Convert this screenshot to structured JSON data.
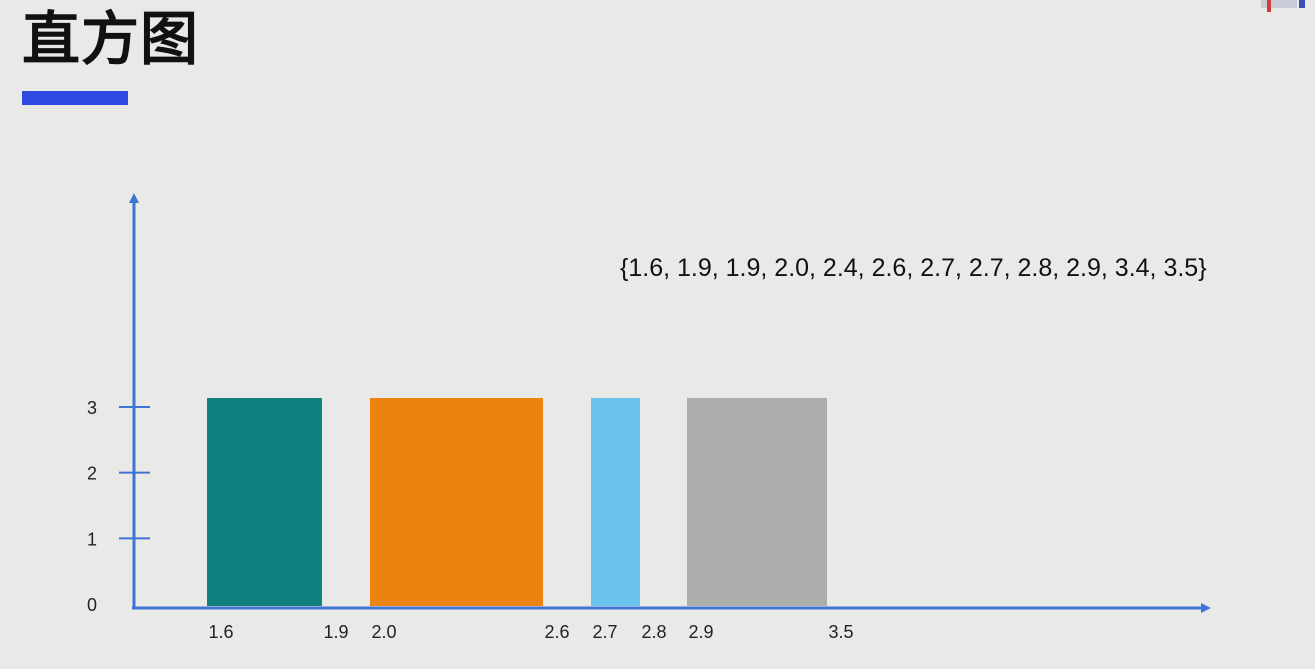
{
  "slide": {
    "title": "直方图",
    "dataset_text": "{1.6, 1.9, 1.9, 2.0, 2.4, 2.6, 2.7, 2.7, 2.8, 2.9, 3.4, 3.5}"
  },
  "colors": {
    "axis": "#3f74d6",
    "title_underline": "#2f48e0",
    "background": "#e9eae8"
  },
  "chart_data": {
    "type": "bar",
    "title": "",
    "xlabel": "",
    "ylabel": "",
    "ylim": [
      0,
      3
    ],
    "yticks": [
      0,
      1,
      2,
      3
    ],
    "xtick_labels": [
      "1.6",
      "1.9",
      "2.0",
      "2.6",
      "2.7",
      "2.8",
      "2.9",
      "3.5"
    ],
    "bins": [
      {
        "start": 1.6,
        "end": 1.9,
        "value": 3,
        "color": "#10817f"
      },
      {
        "start": 2.0,
        "end": 2.6,
        "value": 3,
        "color": "#eb830f"
      },
      {
        "start": 2.7,
        "end": 2.8,
        "value": 3,
        "color": "#6ac3eb"
      },
      {
        "start": 2.9,
        "end": 3.5,
        "value": 3,
        "color": "#adaeac"
      }
    ],
    "grid": false,
    "legend": "none"
  }
}
